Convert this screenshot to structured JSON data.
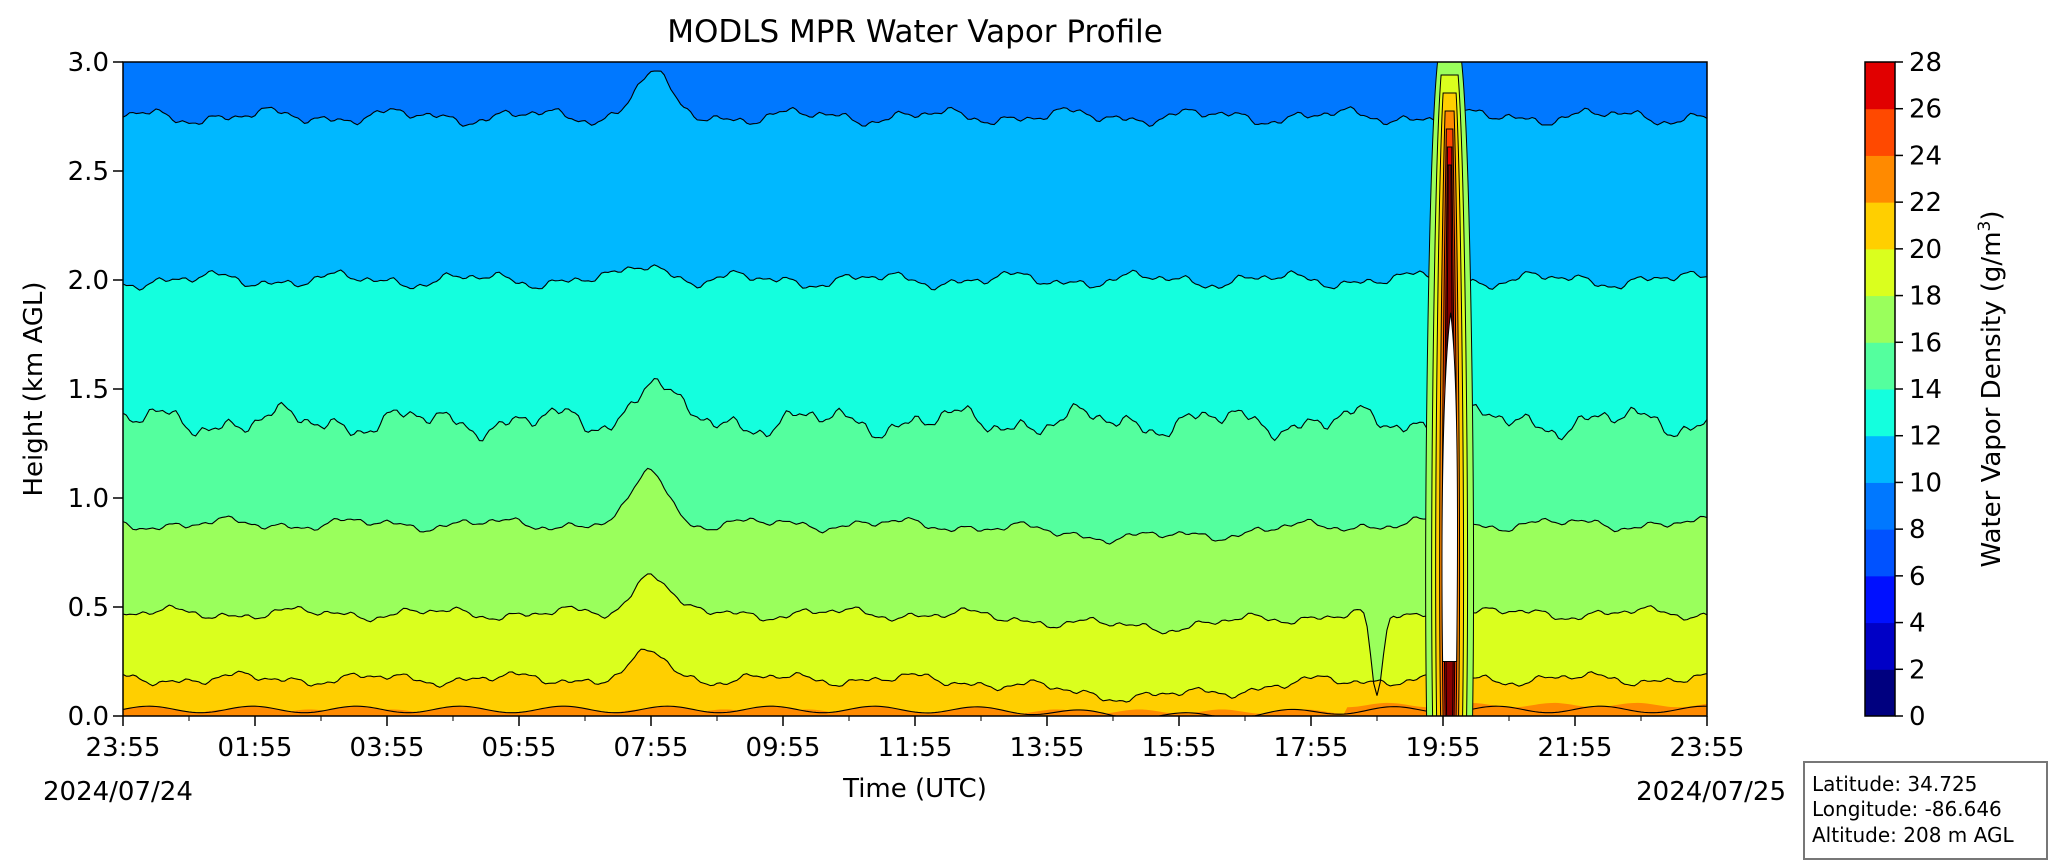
{
  "chart_data": {
    "type": "heatmap",
    "subtype": "filled-contour",
    "title": "MODLS MPR Water Vapor Profile",
    "xlabel": "Time (UTC)",
    "ylabel": "Height (km AGL)",
    "colorbar_label": "Water Vapor Density (g/m",
    "colorbar_label_sup": "3",
    "colorbar_label_close": ")",
    "start_date": "2024/07/24",
    "end_date": "2024/07/25",
    "x_ticks": [
      "23:55",
      "01:55",
      "03:55",
      "05:55",
      "07:55",
      "09:55",
      "11:55",
      "13:55",
      "15:55",
      "17:55",
      "19:55",
      "21:55",
      "23:55"
    ],
    "y_ticks": [
      "0.0",
      "0.5",
      "1.0",
      "1.5",
      "2.0",
      "2.5",
      "3.0"
    ],
    "ylim": [
      0,
      3
    ],
    "x_range_hours": [
      0,
      24
    ],
    "levels": [
      0,
      2,
      4,
      6,
      8,
      10,
      12,
      14,
      16,
      18,
      20,
      22,
      24,
      26,
      28
    ],
    "colorbar_ticks": [
      "0",
      "2",
      "4",
      "6",
      "8",
      "10",
      "12",
      "14",
      "16",
      "18",
      "20",
      "22",
      "24",
      "26",
      "28"
    ],
    "level_colors": [
      "#00007f",
      "#0000c6",
      "#0010ff",
      "#0052ff",
      "#0078ff",
      "#00b8ff",
      "#14ffde",
      "#54ff9e",
      "#9aff5c",
      "#daff1e",
      "#ffcf00",
      "#ff8a00",
      "#ff4900",
      "#e10000",
      "#880000"
    ],
    "approx_contour_heights_km": {
      "10": 2.75,
      "12": 2.0,
      "14": 1.35,
      "16": 0.88,
      "18": 0.47,
      "20": 0.17,
      "22": 0.03
    },
    "event": {
      "time_hours": 20.1,
      "description_note": "",
      "core_max": 28
    }
  },
  "info_box": {
    "latitude": "Latitude: 34.725",
    "longitude": "Longitude: -86.646",
    "altitude": "Altitude: 208 m AGL"
  }
}
